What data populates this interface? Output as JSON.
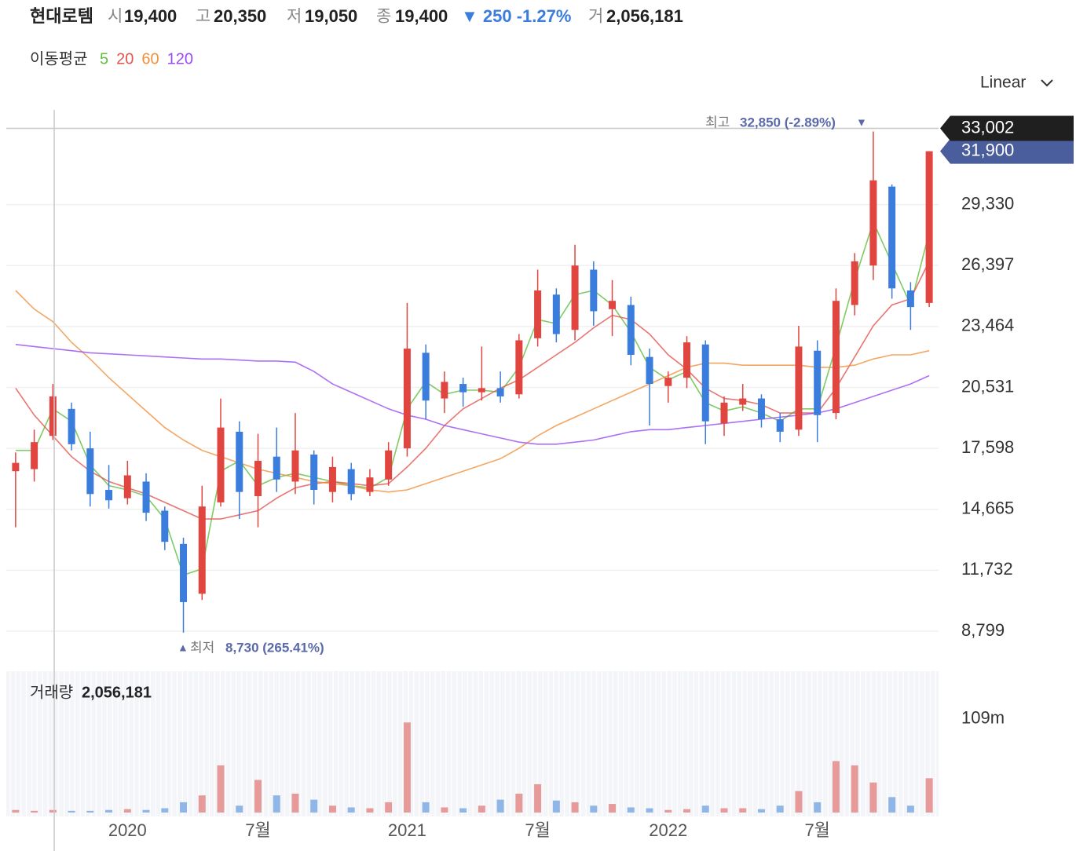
{
  "header": {
    "name": "현대로템",
    "open_label": "시",
    "open": "19,400",
    "high_label": "고",
    "high": "20,350",
    "low_label": "저",
    "low": "19,050",
    "close_label": "종",
    "close": "19,400",
    "change": "▼ 250 -1.27%",
    "volume_label": "거",
    "volume": "2,056,181"
  },
  "ma_title": "이동평균",
  "scale_mode": "Linear",
  "chart_data": {
    "type": "candlestick",
    "categories": [
      null,
      null,
      null,
      null,
      null,
      null,
      "2020",
      null,
      null,
      null,
      null,
      null,
      null,
      "7월",
      null,
      null,
      null,
      null,
      null,
      null,
      null,
      "2021",
      null,
      null,
      null,
      null,
      null,
      null,
      "7월",
      null,
      null,
      null,
      null,
      null,
      null,
      "2022",
      null,
      null,
      null,
      null,
      null,
      null,
      null,
      "7월",
      null,
      null,
      null,
      null,
      null,
      null
    ],
    "open": [
      16500,
      16600,
      18200,
      19500,
      17600,
      15600,
      15200,
      16000,
      14600,
      13000,
      10600,
      15000,
      18400,
      15300,
      17200,
      16000,
      17300,
      15500,
      16600,
      15500,
      16100,
      17600,
      22200,
      20000,
      20700,
      20300,
      20500,
      20200,
      22900,
      25000,
      23300,
      26200,
      24300,
      24500,
      22000,
      20600,
      21000,
      22600,
      18800,
      19700,
      20000,
      19000,
      18500,
      22300,
      19300,
      24500,
      26400,
      30200,
      25200,
      24600
    ],
    "high": [
      17400,
      18500,
      20700,
      19800,
      18400,
      16800,
      17000,
      16400,
      14800,
      13300,
      15800,
      20000,
      18900,
      18300,
      18600,
      19300,
      17500,
      17200,
      16900,
      16600,
      17900,
      24600,
      22600,
      21300,
      21000,
      22500,
      21300,
      23100,
      26200,
      25300,
      27400,
      26600,
      25700,
      24900,
      22400,
      21300,
      23000,
      22800,
      20100,
      20700,
      20200,
      19300,
      23500,
      22800,
      25300,
      27000,
      32850,
      30300,
      25600,
      31900
    ],
    "low": [
      13800,
      16000,
      18000,
      17500,
      14800,
      14700,
      14900,
      14100,
      12700,
      8730,
      10300,
      14800,
      14200,
      13800,
      15500,
      15400,
      14900,
      15000,
      15100,
      15300,
      15800,
      17200,
      19000,
      19300,
      19600,
      19900,
      19800,
      20000,
      22500,
      22700,
      22800,
      23500,
      23000,
      21600,
      18700,
      19800,
      20500,
      17800,
      18200,
      19400,
      18600,
      17900,
      18200,
      17900,
      19000,
      24000,
      25700,
      24800,
      23300,
      24400
    ],
    "close": [
      16900,
      17900,
      20100,
      17800,
      15400,
      15100,
      16300,
      14500,
      13100,
      10200,
      14800,
      18600,
      15500,
      17000,
      16100,
      17500,
      15600,
      16700,
      15400,
      16200,
      17500,
      22400,
      19900,
      20800,
      20300,
      20500,
      20100,
      22800,
      25200,
      23100,
      26400,
      24200,
      24700,
      22100,
      20700,
      21000,
      22700,
      18900,
      19800,
      20000,
      19000,
      18400,
      22500,
      19200,
      24700,
      26600,
      30500,
      25300,
      24400,
      31900
    ],
    "up_color": "#e0453f",
    "down_color": "#3b7ddd",
    "ylim": [
      7250,
      33890
    ],
    "yticks": [
      {
        "value": 8799,
        "label": "8,799"
      },
      {
        "value": 11732,
        "label": "11,732"
      },
      {
        "value": 14665,
        "label": "14,665"
      },
      {
        "value": 17598,
        "label": "17,598"
      },
      {
        "value": 20531,
        "label": "20,531"
      },
      {
        "value": 23464,
        "label": "23,464"
      },
      {
        "value": 26397,
        "label": "26,397"
      },
      {
        "value": 29330,
        "label": "29,330"
      }
    ],
    "grid": true,
    "moving_averages": [
      {
        "name": "5",
        "color": "#5cbf3e",
        "values": [
          17500,
          17500,
          19500,
          18900,
          16800,
          15800,
          15600,
          15300,
          14200,
          11500,
          11800,
          16500,
          17000,
          15800,
          16200,
          16400,
          16200,
          16000,
          15800,
          15700,
          16200,
          19500,
          20800,
          20200,
          20400,
          20400,
          20300,
          21500,
          23800,
          23600,
          25000,
          25200,
          24500,
          23200,
          21500,
          20900,
          21300,
          19800,
          19400,
          19600,
          19300,
          18900,
          19500,
          19500,
          22500,
          25700,
          28500,
          26500,
          24500,
          28000
        ]
      },
      {
        "name": "20",
        "color": "#e4534d",
        "values": [
          20500,
          19200,
          18200,
          17200,
          16500,
          16000,
          15700,
          15400,
          15000,
          14600,
          14200,
          14200,
          14400,
          14600,
          15200,
          15700,
          15900,
          16000,
          15900,
          15800,
          15900,
          16700,
          17600,
          18700,
          19500,
          20000,
          20500,
          20900,
          21500,
          22100,
          22700,
          23400,
          24000,
          23800,
          23100,
          22100,
          21400,
          20500,
          20000,
          19900,
          19700,
          19300,
          19300,
          19300,
          20500,
          22000,
          23500,
          24500,
          24800,
          26600
        ]
      },
      {
        "name": "60",
        "color": "#f0903a",
        "values": [
          25200,
          24300,
          23700,
          22700,
          21900,
          21000,
          20200,
          19400,
          18600,
          18000,
          17500,
          17200,
          16900,
          16600,
          16400,
          16200,
          16000,
          15900,
          15800,
          15600,
          15500,
          15600,
          15900,
          16200,
          16500,
          16800,
          17100,
          17600,
          18200,
          18700,
          19100,
          19500,
          19900,
          20300,
          20700,
          21100,
          21500,
          21700,
          21700,
          21600,
          21600,
          21600,
          21600,
          21500,
          21500,
          21600,
          21900,
          22100,
          22100,
          22300
        ]
      },
      {
        "name": "120",
        "color": "#9a4cf0",
        "values": [
          22600,
          22500,
          22400,
          22300,
          22200,
          22150,
          22100,
          22050,
          22000,
          21950,
          21900,
          21900,
          21850,
          21800,
          21800,
          21750,
          21300,
          20700,
          20300,
          19900,
          19500,
          19200,
          19000,
          18700,
          18500,
          18300,
          18100,
          17900,
          17800,
          17800,
          17900,
          18000,
          18200,
          18400,
          18500,
          18500,
          18600,
          18700,
          18800,
          18900,
          19000,
          19100,
          19200,
          19300,
          19500,
          19800,
          20100,
          20400,
          20700,
          21100
        ]
      }
    ],
    "crosshair_price": {
      "value": 33002,
      "label": "33,002"
    },
    "last_price": {
      "value": 31900,
      "label": "31,900"
    },
    "high_annotation": {
      "label": "최고",
      "value": "32,850 (-2.89%)",
      "arrow": "▼"
    },
    "low_annotation": {
      "arrow": "▲",
      "label": "최저",
      "value": "8,730 (265.41%)"
    },
    "volume": {
      "title": "거래량",
      "last": "2,056,181",
      "up_color": "#e79a9a",
      "down_color": "#8fb6e6",
      "values": [
        3000000,
        2000000,
        3000000,
        2000000,
        2000000,
        3000000,
        4000000,
        3000000,
        5000000,
        12000000,
        20000000,
        55000000,
        8000000,
        38000000,
        20000000,
        22000000,
        15000000,
        8000000,
        6000000,
        5000000,
        12000000,
        105000000,
        12000000,
        6000000,
        5000000,
        8000000,
        15000000,
        22000000,
        33000000,
        14000000,
        12000000,
        8000000,
        10000000,
        6000000,
        5000000,
        3000000,
        4000000,
        8000000,
        5000000,
        5000000,
        4000000,
        8000000,
        25000000,
        12000000,
        60000000,
        55000000,
        35000000,
        18000000,
        8000000,
        40000000
      ],
      "ylim": [
        0,
        151000000
      ],
      "yticks": [
        {
          "value": 109000000,
          "label": "109m"
        }
      ]
    }
  }
}
